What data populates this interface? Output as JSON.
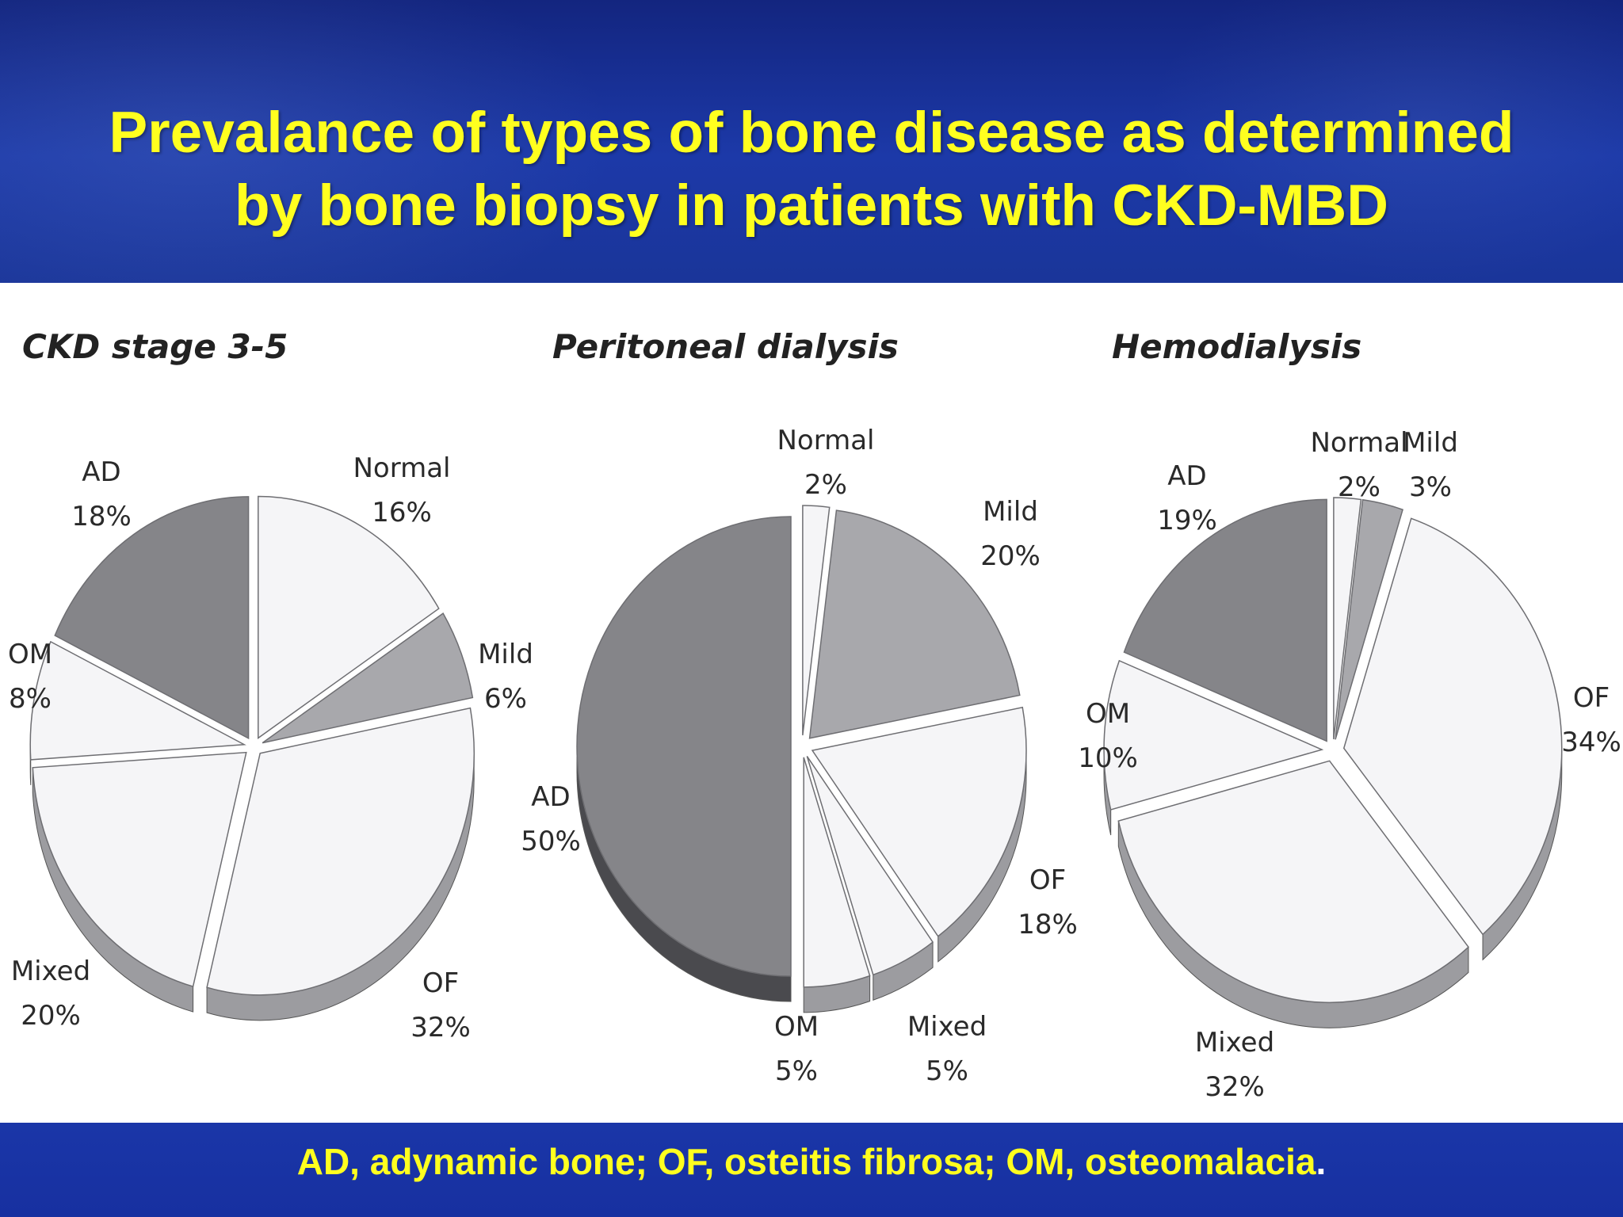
{
  "slide": {
    "title_line1": "Prevalance of types of bone disease as determined",
    "title_line2": "by bone biopsy in patients with CKD-MBD",
    "footnote": "AD, adynamic bone; OF, osteitis fibrosa; OM, osteomalacia",
    "footnote_end": "."
  },
  "colors": {
    "background_header": "#1c39a8",
    "title_text": "#ffff1f",
    "footer": "#1a36a8",
    "slice_top_light": "#f5f5f7",
    "slice_top_mid": "#a8a8ac",
    "slice_top_dark": "#858589",
    "slice_side_light": "#9c9ca0",
    "slice_side_dark": "#4a4a4e"
  },
  "chart_data": [
    {
      "type": "pie",
      "title": "CKD stage 3-5",
      "slices": [
        {
          "label": "Normal",
          "value": 16,
          "value_label": "16%"
        },
        {
          "label": "Mild",
          "value": 6,
          "value_label": "6%"
        },
        {
          "label": "OF",
          "value": 32,
          "value_label": "32%"
        },
        {
          "label": "Mixed",
          "value": 20,
          "value_label": "20%"
        },
        {
          "label": "OM",
          "value": 8,
          "value_label": "8%"
        },
        {
          "label": "AD",
          "value": 18,
          "value_label": "18%"
        }
      ]
    },
    {
      "type": "pie",
      "title": "Peritoneal dialysis",
      "slices": [
        {
          "label": "Normal",
          "value": 2,
          "value_label": "2%"
        },
        {
          "label": "Mild",
          "value": 20,
          "value_label": "20%"
        },
        {
          "label": "OF",
          "value": 18,
          "value_label": "18%"
        },
        {
          "label": "Mixed",
          "value": 5,
          "value_label": "5%"
        },
        {
          "label": "OM",
          "value": 5,
          "value_label": "5%"
        },
        {
          "label": "AD",
          "value": 50,
          "value_label": "50%"
        }
      ]
    },
    {
      "type": "pie",
      "title": "Hemodialysis",
      "slices": [
        {
          "label": "Normal",
          "value": 2,
          "value_label": "2%"
        },
        {
          "label": "Mild",
          "value": 3,
          "value_label": "3%"
        },
        {
          "label": "OF",
          "value": 34,
          "value_label": "34%"
        },
        {
          "label": "Mixed",
          "value": 32,
          "value_label": "32%"
        },
        {
          "label": "OM",
          "value": 10,
          "value_label": "10%"
        },
        {
          "label": "AD",
          "value": 19,
          "value_label": "19%"
        }
      ]
    }
  ]
}
